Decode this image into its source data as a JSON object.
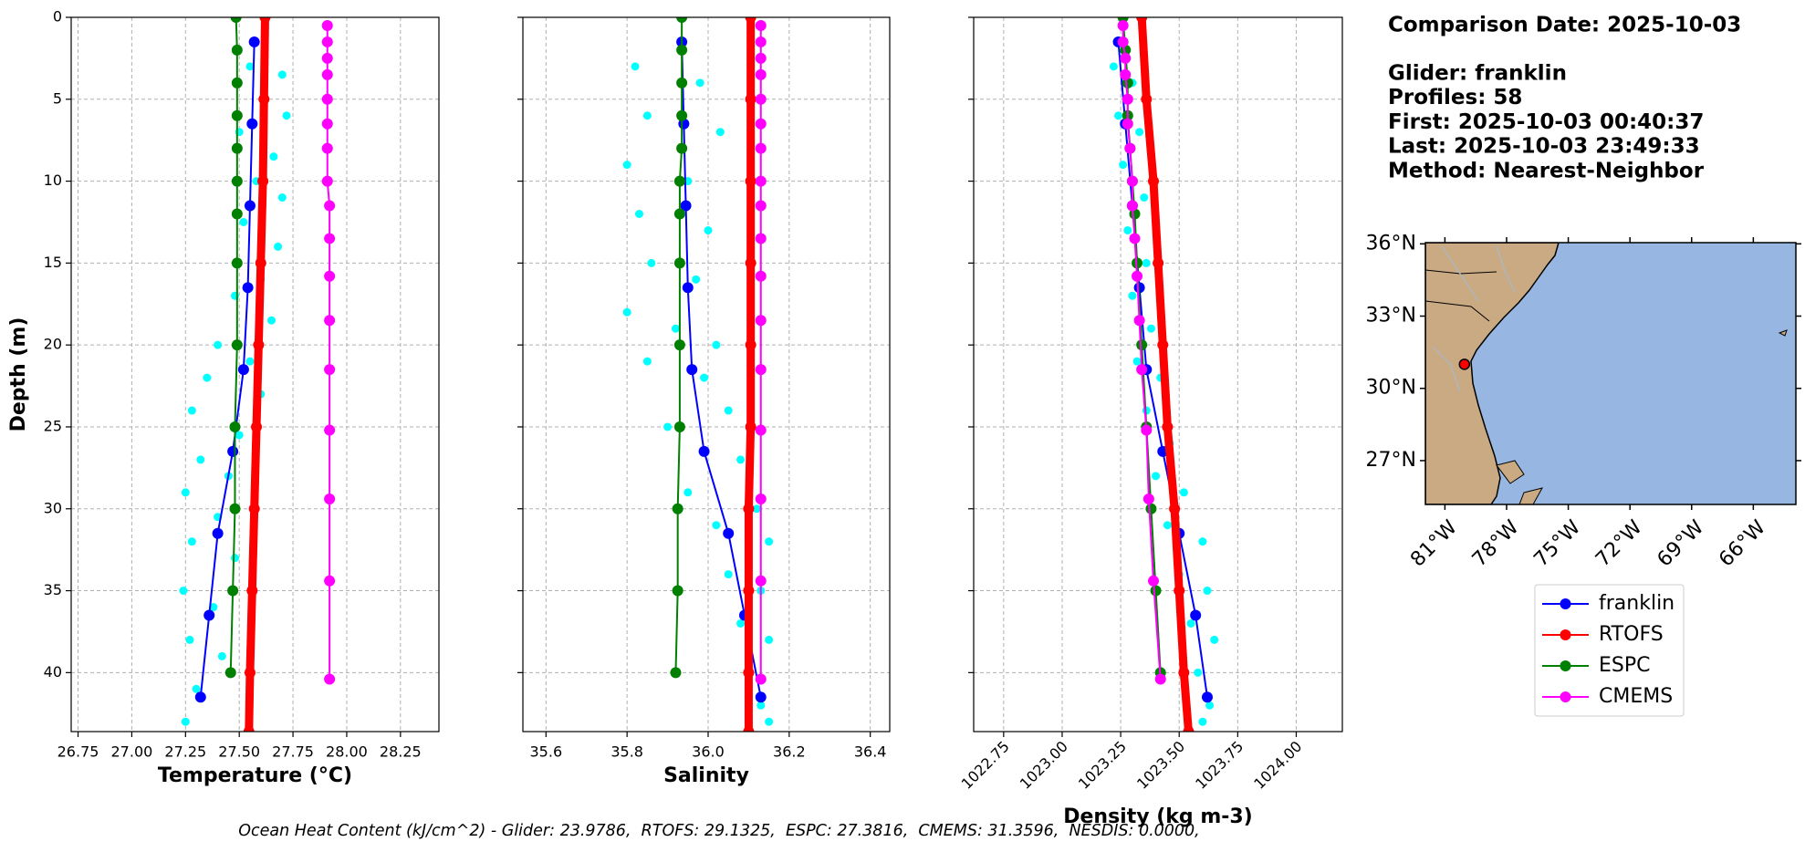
{
  "chart_data": [
    {
      "type": "line",
      "xlabel": "Temperature (°C)",
      "ylabel": "Depth (m)",
      "xlim": [
        26.718,
        28.429
      ],
      "ylim": [
        0,
        43.6
      ],
      "y_inverted": true,
      "grid": true,
      "xticks": [
        26.75,
        {
          "value": 27,
          "label": "27.00"
        },
        27.25,
        {
          "value": 27.5,
          "label": "27.50"
        },
        27.75,
        {
          "value": 28,
          "label": "28.00"
        },
        28.25
      ],
      "yticks": [
        0,
        5,
        10,
        15,
        20,
        25,
        30,
        35,
        40
      ],
      "series": [
        {
          "color": "#00ffff",
          "style": "scatter",
          "values": [
            27.55,
            27.7,
            27.62,
            27.72,
            27.5,
            27.66,
            27.58,
            27.7,
            27.52,
            27.68,
            27.6,
            27.48,
            27.65,
            27.4,
            27.55,
            27.35,
            27.6,
            27.28,
            27.5,
            27.32,
            27.45,
            27.25,
            27.4,
            27.28,
            27.48,
            27.24,
            27.38,
            27.27,
            27.42,
            27.3,
            27.25
          ],
          "depth": [
            3,
            3.5,
            5,
            6,
            7,
            8.5,
            10,
            11,
            12.5,
            14,
            16,
            17,
            18.5,
            20,
            21,
            22,
            23,
            24,
            25.5,
            27,
            28,
            29,
            30.5,
            32,
            33,
            35,
            36,
            38,
            39,
            41,
            43
          ]
        },
        {
          "name": "franklin",
          "color": "#0000ff",
          "style": "line",
          "values": [
            27.57,
            27.56,
            27.55,
            27.54,
            27.52,
            27.47,
            27.4,
            27.36,
            27.32
          ],
          "depth": [
            1.5,
            6.5,
            11.5,
            16.5,
            21.5,
            26.5,
            31.5,
            36.5,
            41.5
          ]
        },
        {
          "name": "RTOFS",
          "color": "#ff0000",
          "style": "thick",
          "values": [
            27.62,
            27.615,
            27.61,
            27.6,
            27.59,
            27.58,
            27.57,
            27.56,
            27.55,
            27.545
          ],
          "depth": [
            0,
            5,
            10,
            15,
            20,
            25,
            30,
            35,
            40,
            43.6
          ]
        },
        {
          "name": "ESPC",
          "color": "#008000",
          "style": "line",
          "values": [
            27.485,
            27.49,
            27.49,
            27.49,
            27.49,
            27.49,
            27.49,
            27.49,
            27.49,
            27.48,
            27.48,
            27.47,
            27.46
          ],
          "depth": [
            0,
            2,
            4,
            6,
            8,
            10,
            12,
            15,
            20,
            25,
            30,
            35,
            40
          ]
        },
        {
          "name": "CMEMS",
          "color": "#ff00ff",
          "style": "line",
          "values": [
            27.91,
            27.91,
            27.91,
            27.91,
            27.91,
            27.91,
            27.91,
            27.91,
            27.92,
            27.92,
            27.92,
            27.92,
            27.92,
            27.92,
            27.92,
            27.92,
            27.92
          ],
          "depth": [
            0.5,
            1.5,
            2.5,
            3.5,
            5,
            6.5,
            8,
            10,
            11.5,
            13.5,
            15.8,
            18.5,
            21.5,
            25.2,
            29.4,
            34.4,
            40.4
          ]
        }
      ]
    },
    {
      "type": "line",
      "xlabel": "Salinity",
      "xlim": [
        35.543,
        36.448
      ],
      "ylim": [
        0,
        43.6
      ],
      "y_inverted": true,
      "grid": true,
      "ytick_labels": false,
      "xticks": [
        35.6,
        35.8,
        {
          "value": 36,
          "label": "36.0"
        },
        36.2,
        36.4
      ],
      "yticks": [
        0,
        5,
        10,
        15,
        20,
        25,
        30,
        35,
        40
      ],
      "series": [
        {
          "color": "#00ffff",
          "style": "scatter",
          "values": [
            35.82,
            35.98,
            35.85,
            36.03,
            35.8,
            35.95,
            35.83,
            36.0,
            35.86,
            35.97,
            35.8,
            35.92,
            36.02,
            35.85,
            35.99,
            36.05,
            35.9,
            36.08,
            35.95,
            36.12,
            36.02,
            36.15,
            36.05,
            36.13,
            36.08,
            36.15,
            36.1,
            36.13,
            36.15
          ],
          "depth": [
            3,
            4,
            6,
            7,
            9,
            10,
            12,
            13,
            15,
            16,
            18,
            19,
            20,
            21,
            22,
            24,
            25,
            27,
            29,
            30,
            31,
            32,
            34,
            35,
            37,
            38,
            40,
            42,
            43
          ]
        },
        {
          "color": "#0000ff",
          "style": "line",
          "values": [
            35.935,
            35.94,
            35.945,
            35.95,
            35.96,
            35.99,
            36.05,
            36.09,
            36.13
          ],
          "depth": [
            1.5,
            6.5,
            11.5,
            16.5,
            21.5,
            26.5,
            31.5,
            36.5,
            41.5
          ]
        },
        {
          "color": "#ff0000",
          "style": "thick",
          "values": [
            36.105,
            36.105,
            36.105,
            36.105,
            36.105,
            36.105,
            36.1,
            36.1,
            36.1,
            36.1
          ],
          "depth": [
            0,
            5,
            10,
            15,
            20,
            25,
            30,
            35,
            40,
            43.6
          ]
        },
        {
          "color": "#008000",
          "style": "line",
          "values": [
            35.935,
            35.935,
            35.935,
            35.935,
            35.935,
            35.93,
            35.93,
            35.93,
            35.93,
            35.93,
            35.925,
            35.925,
            35.92
          ],
          "depth": [
            0,
            2,
            4,
            6,
            8,
            10,
            12,
            15,
            20,
            25,
            30,
            35,
            40
          ]
        },
        {
          "color": "#ff00ff",
          "style": "line",
          "values": [
            36.13,
            36.13,
            36.13,
            36.13,
            36.13,
            36.13,
            36.13,
            36.13,
            36.13,
            36.13,
            36.13,
            36.13,
            36.13,
            36.13,
            36.13,
            36.13,
            36.13
          ],
          "depth": [
            0.5,
            1.5,
            2.5,
            3.5,
            5,
            6.5,
            8,
            10,
            11.5,
            13.5,
            15.8,
            18.5,
            21.5,
            25.2,
            29.4,
            34.4,
            40.4
          ]
        }
      ]
    },
    {
      "type": "line",
      "xlabel": "Density (kg m-3)",
      "xlim": [
        1022.622,
        1024.197
      ],
      "ylim": [
        0,
        43.6
      ],
      "y_inverted": true,
      "grid": true,
      "ytick_labels": false,
      "xtick_rotation": 45,
      "xticks": [
        1022.75,
        {
          "value": 1023,
          "label": "1023.00"
        },
        1023.25,
        {
          "value": 1023.5,
          "label": "1023.50"
        },
        1023.75,
        {
          "value": 1024,
          "label": "1024.00"
        }
      ],
      "yticks": [
        0,
        5,
        10,
        15,
        20,
        25,
        30,
        35,
        40
      ],
      "series": [
        {
          "color": "#00ffff",
          "style": "scatter",
          "values": [
            1023.22,
            1023.3,
            1023.24,
            1023.33,
            1023.26,
            1023.35,
            1023.28,
            1023.36,
            1023.3,
            1023.38,
            1023.32,
            1023.42,
            1023.36,
            1023.46,
            1023.4,
            1023.52,
            1023.45,
            1023.6,
            1023.5,
            1023.62,
            1023.55,
            1023.65,
            1023.58,
            1023.63,
            1023.6
          ],
          "depth": [
            3,
            4,
            6,
            7,
            9,
            11,
            13,
            15,
            17,
            19,
            21,
            22,
            24,
            26,
            28,
            29,
            31,
            32,
            34,
            35,
            37,
            38,
            40,
            42,
            43
          ]
        },
        {
          "color": "#0000ff",
          "style": "line",
          "values": [
            1023.24,
            1023.27,
            1023.3,
            1023.33,
            1023.36,
            1023.43,
            1023.5,
            1023.57,
            1023.62
          ],
          "depth": [
            1.5,
            6.5,
            11.5,
            16.5,
            21.5,
            26.5,
            31.5,
            36.5,
            41.5
          ]
        },
        {
          "color": "#ff0000",
          "style": "thick",
          "values": [
            1023.34,
            1023.36,
            1023.39,
            1023.41,
            1023.43,
            1023.45,
            1023.48,
            1023.5,
            1023.52,
            1023.54
          ],
          "depth": [
            0,
            5,
            10,
            15,
            20,
            25,
            30,
            35,
            40,
            43.6
          ]
        },
        {
          "color": "#008000",
          "style": "line",
          "values": [
            1023.26,
            1023.27,
            1023.28,
            1023.28,
            1023.29,
            1023.3,
            1023.31,
            1023.32,
            1023.34,
            1023.36,
            1023.38,
            1023.4,
            1023.42
          ],
          "depth": [
            0,
            2,
            4,
            6,
            8,
            10,
            12,
            15,
            20,
            25,
            30,
            35,
            40
          ]
        },
        {
          "color": "#ff00ff",
          "style": "line",
          "values": [
            1023.26,
            1023.26,
            1023.27,
            1023.27,
            1023.28,
            1023.28,
            1023.29,
            1023.3,
            1023.3,
            1023.31,
            1023.32,
            1023.33,
            1023.34,
            1023.36,
            1023.37,
            1023.39,
            1023.42
          ],
          "depth": [
            0.5,
            1.5,
            2.5,
            3.5,
            5,
            6.5,
            8,
            10,
            11.5,
            13.5,
            15.8,
            18.5,
            21.5,
            25.2,
            29.4,
            34.4,
            40.4
          ]
        }
      ]
    }
  ],
  "info": [
    "Comparison Date: 2025-10-03",
    "Glider: franklin",
    "Profiles: 58",
    "First: 2025-10-03 00:40:37",
    "Last: 2025-10-03 23:49:33",
    "Method: Nearest-Neighbor"
  ],
  "map": {
    "lonlim": [
      -81.95,
      -63.93
    ],
    "latlim": [
      25.18,
      36.05
    ],
    "xticks": [
      {
        "value": -81,
        "label": "81°W"
      },
      {
        "value": -78,
        "label": "78°W"
      },
      {
        "value": -75,
        "label": "75°W"
      },
      {
        "value": -72,
        "label": "72°W"
      },
      {
        "value": -69,
        "label": "69°W"
      },
      {
        "value": -66,
        "label": "66°W"
      }
    ],
    "yticks": [
      {
        "value": 36,
        "label": "36°N"
      },
      {
        "value": 33,
        "label": "33°N"
      },
      {
        "value": 30,
        "label": "30°N"
      },
      {
        "value": 27,
        "label": "27°N"
      }
    ],
    "glider_position": {
      "lon": -80.05,
      "lat": 31.0
    }
  },
  "footer": "Ocean Heat Content (kJ/cm^2) - Glider: 23.9786,  RTOFS: 29.1325,  ESPC: 27.3816,  CMEMS: 31.3596,  NESDIS: 0.0000,"
}
